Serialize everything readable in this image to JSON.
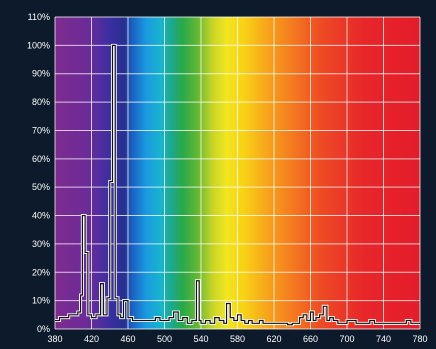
{
  "chart_data": {
    "type": "line",
    "title": "",
    "xlabel": "",
    "ylabel": "",
    "xlim": [
      380,
      780
    ],
    "ylim": [
      0,
      110
    ],
    "x_ticks": [
      "380",
      "420",
      "460",
      "500",
      "540",
      "580",
      "620",
      "660",
      "700",
      "740",
      "780"
    ],
    "y_ticks": [
      "0%",
      "10%",
      "20%",
      "30%",
      "40%",
      "50%",
      "60%",
      "70%",
      "80%",
      "90%",
      "100%",
      "110%"
    ],
    "grid": true,
    "background": "visible spectrum gradient",
    "series": [
      {
        "line_style": "step",
        "color": "#ffffff",
        "points": [
          [
            380,
            3
          ],
          [
            385,
            4
          ],
          [
            390,
            4
          ],
          [
            395,
            5
          ],
          [
            400,
            5
          ],
          [
            405,
            6
          ],
          [
            408,
            12
          ],
          [
            410,
            40
          ],
          [
            413,
            27
          ],
          [
            416,
            5
          ],
          [
            420,
            4
          ],
          [
            425,
            5
          ],
          [
            430,
            16
          ],
          [
            433,
            5
          ],
          [
            437,
            11
          ],
          [
            440,
            52
          ],
          [
            443,
            100
          ],
          [
            446,
            11
          ],
          [
            449,
            5
          ],
          [
            452,
            4
          ],
          [
            455,
            10
          ],
          [
            460,
            4
          ],
          [
            465,
            3
          ],
          [
            470,
            3
          ],
          [
            480,
            3
          ],
          [
            490,
            4
          ],
          [
            495,
            3
          ],
          [
            500,
            3
          ],
          [
            505,
            4
          ],
          [
            510,
            6
          ],
          [
            515,
            3
          ],
          [
            520,
            4
          ],
          [
            525,
            2
          ],
          [
            530,
            3
          ],
          [
            535,
            17
          ],
          [
            538,
            3
          ],
          [
            540,
            2
          ],
          [
            545,
            3
          ],
          [
            550,
            2
          ],
          [
            555,
            4
          ],
          [
            560,
            3
          ],
          [
            565,
            2
          ],
          [
            568,
            9
          ],
          [
            572,
            4
          ],
          [
            576,
            3
          ],
          [
            580,
            5
          ],
          [
            584,
            3
          ],
          [
            588,
            2
          ],
          [
            592,
            3
          ],
          [
            596,
            2
          ],
          [
            600,
            2
          ],
          [
            604,
            3
          ],
          [
            608,
            2
          ],
          [
            615,
            2
          ],
          [
            620,
            2
          ],
          [
            625,
            2
          ],
          [
            630,
            2
          ],
          [
            635,
            1.5
          ],
          [
            640,
            2
          ],
          [
            645,
            2
          ],
          [
            648,
            4
          ],
          [
            652,
            5
          ],
          [
            656,
            3
          ],
          [
            660,
            6
          ],
          [
            663,
            3
          ],
          [
            666,
            4
          ],
          [
            670,
            5
          ],
          [
            674,
            8
          ],
          [
            678,
            3
          ],
          [
            681,
            4
          ],
          [
            685,
            3
          ],
          [
            690,
            2
          ],
          [
            695,
            2
          ],
          [
            700,
            3
          ],
          [
            710,
            2
          ],
          [
            720,
            2
          ],
          [
            725,
            3
          ],
          [
            730,
            2
          ],
          [
            740,
            2
          ],
          [
            750,
            2
          ],
          [
            760,
            2
          ],
          [
            765,
            3
          ],
          [
            770,
            2
          ],
          [
            780,
            2
          ]
        ]
      }
    ]
  }
}
